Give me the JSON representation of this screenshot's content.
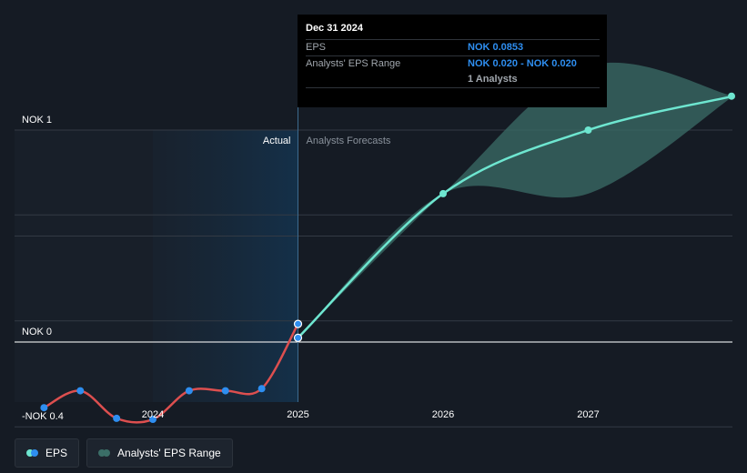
{
  "chart_data": {
    "type": "line",
    "y_axis": {
      "labels": [
        {
          "value": 1,
          "text": "NOK 1"
        },
        {
          "value": 0,
          "text": "NOK 0"
        },
        {
          "value": -0.4,
          "text": "-NOK 0.4"
        }
      ],
      "gridlines": [
        1,
        0.6,
        0.5,
        0.1,
        0,
        -0.4
      ]
    },
    "x_axis": {
      "ticks": [
        {
          "value": 2024.0,
          "text": "2024"
        },
        {
          "value": 2025.0,
          "text": "2025"
        },
        {
          "value": 2026.0,
          "text": "2026"
        },
        {
          "value": 2027.0,
          "text": "2027"
        }
      ]
    },
    "regions": {
      "actual_label": "Actual",
      "forecast_label": "Analysts Forecasts",
      "split_at": 2025.0
    },
    "series": [
      {
        "name": "EPS",
        "color": "#dd4f4f",
        "marker_color": "#2e8ef0",
        "points": [
          {
            "x": 2023.25,
            "y": -0.31
          },
          {
            "x": 2023.5,
            "y": -0.23
          },
          {
            "x": 2023.75,
            "y": -0.36
          },
          {
            "x": 2024.0,
            "y": -0.365
          },
          {
            "x": 2024.25,
            "y": -0.23
          },
          {
            "x": 2024.5,
            "y": -0.23
          },
          {
            "x": 2024.75,
            "y": -0.22
          },
          {
            "x": 2025.0,
            "y": 0.0853
          }
        ]
      },
      {
        "name": "Analysts' EPS Range",
        "color": "#6ee6d0",
        "band_color": "#3b6e67",
        "points": [
          {
            "x": 2025.0,
            "y": 0.02
          },
          {
            "x": 2026.0,
            "y": 0.7
          },
          {
            "x": 2027.0,
            "y": 1.0
          },
          {
            "x": 2028.0,
            "y": 1.16
          }
        ],
        "band": [
          {
            "x": 2025.0,
            "low": 0.02,
            "high": 0.02
          },
          {
            "x": 2026.0,
            "low": 0.7,
            "high": 0.7
          },
          {
            "x": 2027.0,
            "low": 0.7,
            "high": 1.3
          },
          {
            "x": 2028.0,
            "low": 1.16,
            "high": 1.16
          }
        ]
      }
    ]
  },
  "tooltip": {
    "date": "Dec 31 2024",
    "rows": [
      {
        "key": "EPS",
        "value": "NOK 0.0853"
      },
      {
        "key": "Analysts' EPS Range",
        "value": "NOK 0.020 - NOK 0.020",
        "sub": "1 Analysts"
      }
    ]
  },
  "legend": [
    {
      "label": "EPS",
      "color1": "#6ee6d0",
      "color2": "#2e8ef0"
    },
    {
      "label": "Analysts' EPS Range",
      "color1": "#3b6e67",
      "color2": "#3b6e67"
    }
  ]
}
